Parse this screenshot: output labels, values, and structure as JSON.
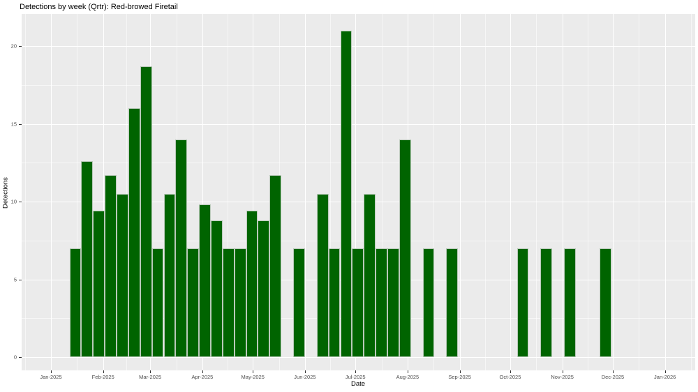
{
  "title": "Detections by week (Qrtr): Red-browed Firetail",
  "chart_data": {
    "type": "bar",
    "title": "Detections by week (Qrtr): Red-browed Firetail",
    "xlabel": "Date",
    "ylabel": "Detections",
    "x_unit": "week",
    "legend": false,
    "grid": true,
    "ylim": [
      0,
      22
    ],
    "y_ticks": [
      0,
      5,
      10,
      15,
      20
    ],
    "y_minor_ticks": [
      2.5,
      7.5,
      12.5,
      17.5
    ],
    "x_ticks": [
      {
        "label": "Jan-2025",
        "date": "2025-01-01"
      },
      {
        "label": "Feb-2025",
        "date": "2025-02-01"
      },
      {
        "label": "Mar-2025",
        "date": "2025-03-01"
      },
      {
        "label": "Apr-2025",
        "date": "2025-04-01"
      },
      {
        "label": "May-2025",
        "date": "2025-05-01"
      },
      {
        "label": "Jun-2025",
        "date": "2025-06-01"
      },
      {
        "label": "Jul-2025",
        "date": "2025-07-01"
      },
      {
        "label": "Aug-2025",
        "date": "2025-08-01"
      },
      {
        "label": "Sep-2025",
        "date": "2025-09-01"
      },
      {
        "label": "Oct-2025",
        "date": "2025-10-01"
      },
      {
        "label": "Nov-2025",
        "date": "2025-11-01"
      },
      {
        "label": "Dec-2025",
        "date": "2025-12-01"
      },
      {
        "label": "Jan-2026",
        "date": "2026-01-01"
      }
    ],
    "series": [
      {
        "week_start": "2025-01-12",
        "value": 7
      },
      {
        "week_start": "2025-01-19",
        "value": 12.6
      },
      {
        "week_start": "2025-01-26",
        "value": 9.4
      },
      {
        "week_start": "2025-02-02",
        "value": 11.7
      },
      {
        "week_start": "2025-02-09",
        "value": 10.5
      },
      {
        "week_start": "2025-02-16",
        "value": 16
      },
      {
        "week_start": "2025-02-23",
        "value": 18.7
      },
      {
        "week_start": "2025-03-02",
        "value": 7
      },
      {
        "week_start": "2025-03-09",
        "value": 10.5
      },
      {
        "week_start": "2025-03-16",
        "value": 14
      },
      {
        "week_start": "2025-03-23",
        "value": 7
      },
      {
        "week_start": "2025-03-30",
        "value": 9.8
      },
      {
        "week_start": "2025-04-06",
        "value": 8.8
      },
      {
        "week_start": "2025-04-13",
        "value": 7
      },
      {
        "week_start": "2025-04-20",
        "value": 7
      },
      {
        "week_start": "2025-04-27",
        "value": 9.4
      },
      {
        "week_start": "2025-05-04",
        "value": 8.8
      },
      {
        "week_start": "2025-05-11",
        "value": 11.7
      },
      {
        "week_start": "2025-05-25",
        "value": 7
      },
      {
        "week_start": "2025-06-08",
        "value": 10.5
      },
      {
        "week_start": "2025-06-15",
        "value": 7
      },
      {
        "week_start": "2025-06-22",
        "value": 21
      },
      {
        "week_start": "2025-06-29",
        "value": 7
      },
      {
        "week_start": "2025-07-06",
        "value": 10.5
      },
      {
        "week_start": "2025-07-13",
        "value": 7
      },
      {
        "week_start": "2025-07-20",
        "value": 7
      },
      {
        "week_start": "2025-07-27",
        "value": 14
      },
      {
        "week_start": "2025-08-10",
        "value": 7
      },
      {
        "week_start": "2025-08-24",
        "value": 7
      },
      {
        "week_start": "2025-10-05",
        "value": 7
      },
      {
        "week_start": "2025-10-19",
        "value": 7
      },
      {
        "week_start": "2025-11-02",
        "value": 7
      },
      {
        "week_start": "2025-11-23",
        "value": 7
      }
    ],
    "colors": {
      "bar_fill": "#006400",
      "bar_stroke": "#b9cab9",
      "panel_background": "#ebebeb",
      "gridline": "#ffffff",
      "tick_label": "#4d4d4d",
      "axis_title": "#000000",
      "title": "#000000"
    }
  }
}
